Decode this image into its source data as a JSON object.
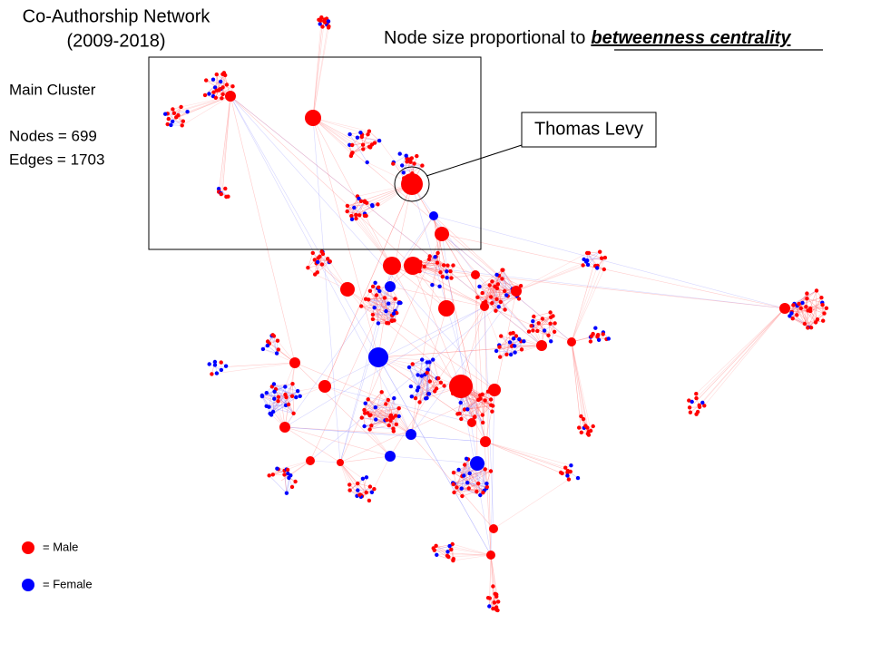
{
  "title": {
    "line1": "Co-Authorship Network",
    "line2": "(2009-2018)"
  },
  "subtitle": {
    "prefix": "Node size proportional to",
    "emphasis": "betweenness centrality"
  },
  "stats": {
    "heading": "Main Cluster",
    "nodes": "Nodes = 699",
    "edges": "Edges = 1703"
  },
  "callout": {
    "label": "Thomas Levy"
  },
  "legend": {
    "male": "= Male",
    "female": "= Female"
  }
}
